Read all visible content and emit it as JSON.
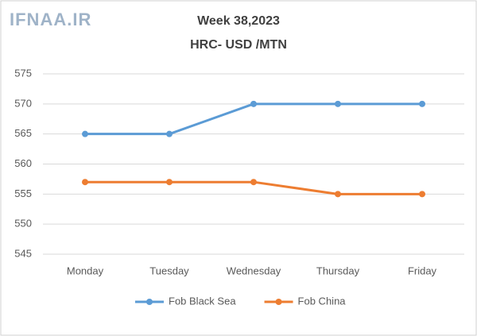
{
  "chart_data": {
    "type": "line",
    "watermark": "IFNAA.IR",
    "title": "Week 38,2023",
    "subtitle": "HRC- USD /MTN",
    "categories": [
      "Monday",
      "Tuesday",
      "Wednesday",
      "Thursday",
      "Friday"
    ],
    "series": [
      {
        "name": "Fob Black Sea",
        "color": "#5b9bd5",
        "values": [
          565,
          565,
          570,
          570,
          570
        ]
      },
      {
        "name": "Fob China",
        "color": "#ed7d31",
        "values": [
          557,
          557,
          557,
          555,
          555
        ]
      }
    ],
    "ylim": [
      545,
      575
    ],
    "yticks": [
      545,
      550,
      555,
      560,
      565,
      570,
      575
    ],
    "grid": true,
    "legend": "bottom"
  }
}
